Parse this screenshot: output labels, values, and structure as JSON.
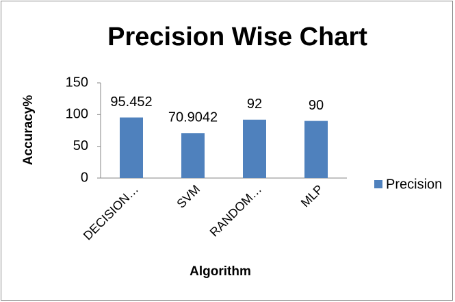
{
  "chart_data": {
    "type": "bar",
    "title": "Precision Wise Chart",
    "xlabel": "Algorithm",
    "ylabel": "Accuracy%",
    "categories": [
      "DECISION…",
      "SVM",
      "RANDOM…",
      "MLP"
    ],
    "series": [
      {
        "name": "Precision",
        "color": "#4f81bd",
        "values": [
          95.452,
          70.9042,
          92,
          90
        ]
      }
    ],
    "ylim": [
      0,
      150
    ],
    "yticks": [
      0,
      50,
      100,
      150
    ],
    "grid": false,
    "legend": "right"
  }
}
